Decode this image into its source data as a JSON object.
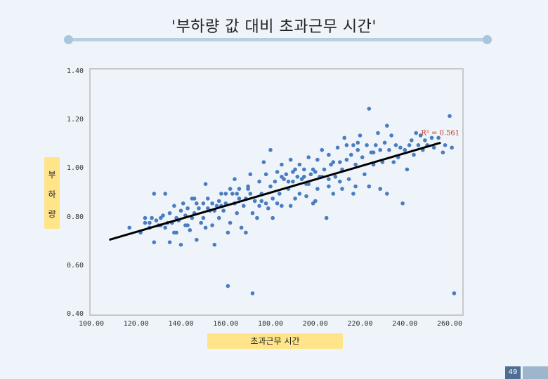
{
  "chart_data": {
    "type": "scatter",
    "title": "'부하량 값 대비 초과근무 시간'",
    "xlabel": "초과근무 시간",
    "ylabel": [
      "부",
      "하",
      "량"
    ],
    "xlim": [
      100,
      270
    ],
    "ylim": [
      0.4,
      1.4
    ],
    "xticks": [
      "100.00",
      "120.00",
      "140.00",
      "160.00",
      "180.00",
      "200.00",
      "220.00",
      "240.00",
      "260.00"
    ],
    "yticks": [
      "0.40",
      "0.60",
      "0.80",
      "1.00",
      "1.20",
      "1.40"
    ],
    "trendline": {
      "x": [
        108,
        256
      ],
      "y": [
        0.71,
        1.11
      ],
      "label": "R² = 0.561"
    },
    "marker_color": "#4a7cc0",
    "trend_color": "#000000",
    "series": [
      {
        "points": [
          [
            117,
            0.76
          ],
          [
            122,
            0.74
          ],
          [
            124,
            0.78
          ],
          [
            126,
            0.78
          ],
          [
            127,
            0.8
          ],
          [
            128,
            0.7
          ],
          [
            128,
            0.9
          ],
          [
            129,
            0.79
          ],
          [
            130,
            0.77
          ],
          [
            131,
            0.8
          ],
          [
            132,
            0.81
          ],
          [
            133,
            0.9
          ],
          [
            133,
            0.76
          ],
          [
            134,
            0.78
          ],
          [
            135,
            0.82
          ],
          [
            135,
            0.7
          ],
          [
            136,
            0.78
          ],
          [
            137,
            0.85
          ],
          [
            138,
            0.8
          ],
          [
            138,
            0.74
          ],
          [
            139,
            0.79
          ],
          [
            140,
            0.83
          ],
          [
            140,
            0.69
          ],
          [
            141,
            0.86
          ],
          [
            142,
            0.77
          ],
          [
            142,
            0.81
          ],
          [
            143,
            0.84
          ],
          [
            144,
            0.75
          ],
          [
            145,
            0.88
          ],
          [
            145,
            0.8
          ],
          [
            146,
            0.82
          ],
          [
            147,
            0.86
          ],
          [
            147,
            0.71
          ],
          [
            148,
            0.84
          ],
          [
            149,
            0.78
          ],
          [
            150,
            0.86
          ],
          [
            150,
            0.8
          ],
          [
            151,
            0.94
          ],
          [
            151,
            0.76
          ],
          [
            152,
            0.84
          ],
          [
            153,
            0.83
          ],
          [
            154,
            0.86
          ],
          [
            154,
            0.77
          ],
          [
            155,
            0.83
          ],
          [
            155,
            0.69
          ],
          [
            156,
            0.85
          ],
          [
            157,
            0.87
          ],
          [
            157,
            0.8
          ],
          [
            158,
            0.85
          ],
          [
            159,
            0.83
          ],
          [
            160,
            0.86
          ],
          [
            160,
            0.9
          ],
          [
            161,
            0.74
          ],
          [
            161,
            0.52
          ],
          [
            162,
            0.92
          ],
          [
            162,
            0.78
          ],
          [
            163,
            0.9
          ],
          [
            164,
            0.96
          ],
          [
            164,
            0.86
          ],
          [
            165,
            0.82
          ],
          [
            166,
            0.88
          ],
          [
            166,
            0.92
          ],
          [
            167,
            0.76
          ],
          [
            168,
            0.85
          ],
          [
            169,
            0.88
          ],
          [
            169,
            0.74
          ],
          [
            170,
            0.93
          ],
          [
            171,
            0.98
          ],
          [
            171,
            0.9
          ],
          [
            172,
            0.82
          ],
          [
            172,
            0.49
          ],
          [
            173,
            0.87
          ],
          [
            174,
            0.8
          ],
          [
            175,
            0.95
          ],
          [
            175,
            0.85
          ],
          [
            176,
            0.9
          ],
          [
            177,
            1.03
          ],
          [
            178,
            0.98
          ],
          [
            178,
            0.86
          ],
          [
            179,
            0.84
          ],
          [
            180,
            0.93
          ],
          [
            180,
            1.08
          ],
          [
            181,
            0.8
          ],
          [
            181,
            0.88
          ],
          [
            182,
            0.95
          ],
          [
            183,
            0.99
          ],
          [
            184,
            0.9
          ],
          [
            185,
            1.02
          ],
          [
            185,
            0.85
          ],
          [
            186,
            0.96
          ],
          [
            187,
            0.98
          ],
          [
            188,
            0.92
          ],
          [
            189,
            1.04
          ],
          [
            189,
            0.85
          ],
          [
            190,
            0.95
          ],
          [
            191,
            1.0
          ],
          [
            191,
            0.88
          ],
          [
            192,
            0.97
          ],
          [
            193,
            1.02
          ],
          [
            193,
            0.9
          ],
          [
            194,
            0.96
          ],
          [
            195,
            1.0
          ],
          [
            196,
            0.89
          ],
          [
            197,
            0.94
          ],
          [
            197,
            1.05
          ],
          [
            198,
            0.98
          ],
          [
            199,
            0.86
          ],
          [
            200,
            0.99
          ],
          [
            201,
            1.04
          ],
          [
            201,
            0.92
          ],
          [
            202,
            0.97
          ],
          [
            203,
            1.08
          ],
          [
            204,
            1.0
          ],
          [
            205,
            0.8
          ],
          [
            206,
            0.96
          ],
          [
            206,
            1.06
          ],
          [
            207,
            1.02
          ],
          [
            208,
            0.9
          ],
          [
            209,
            0.97
          ],
          [
            210,
            1.09
          ],
          [
            211,
            1.03
          ],
          [
            211,
            0.95
          ],
          [
            212,
            1.0
          ],
          [
            213,
            1.13
          ],
          [
            214,
            1.04
          ],
          [
            215,
            0.96
          ],
          [
            216,
            1.06
          ],
          [
            217,
            1.1
          ],
          [
            217,
            0.9
          ],
          [
            218,
            1.02
          ],
          [
            219,
            1.08
          ],
          [
            220,
            1.14
          ],
          [
            221,
            1.05
          ],
          [
            222,
            0.98
          ],
          [
            223,
            1.1
          ],
          [
            224,
            1.25
          ],
          [
            225,
            1.07
          ],
          [
            226,
            1.02
          ],
          [
            227,
            1.1
          ],
          [
            228,
            1.15
          ],
          [
            229,
            1.08
          ],
          [
            230,
            1.03
          ],
          [
            231,
            1.11
          ],
          [
            232,
            1.18
          ],
          [
            233,
            1.08
          ],
          [
            234,
            1.14
          ],
          [
            235,
            1.03
          ],
          [
            236,
            1.1
          ],
          [
            237,
            1.05
          ],
          [
            238,
            1.09
          ],
          [
            239,
            0.86
          ],
          [
            240,
            1.08
          ],
          [
            241,
            1.0
          ],
          [
            242,
            1.1
          ],
          [
            243,
            1.12
          ],
          [
            244,
            1.06
          ],
          [
            245,
            1.15
          ],
          [
            246,
            1.1
          ],
          [
            247,
            1.14
          ],
          [
            248,
            1.08
          ],
          [
            249,
            1.12
          ],
          [
            250,
            1.1
          ],
          [
            252,
            1.13
          ],
          [
            253,
            1.09
          ],
          [
            255,
            1.13
          ],
          [
            257,
            1.07
          ],
          [
            258,
            1.1
          ],
          [
            260,
            1.22
          ],
          [
            261,
            1.09
          ],
          [
            262,
            0.49
          ],
          [
            229,
            0.92
          ],
          [
            224,
            0.93
          ],
          [
            218,
            0.93
          ],
          [
            212,
            0.92
          ],
          [
            206,
            0.93
          ],
          [
            200,
            0.87
          ],
          [
            196,
            0.94
          ],
          [
            188,
            0.95
          ],
          [
            183,
            0.86
          ],
          [
            176,
            0.87
          ],
          [
            170,
            0.92
          ],
          [
            165,
            0.9
          ],
          [
            158,
            0.9
          ],
          [
            152,
            0.88
          ],
          [
            146,
            0.88
          ],
          [
            143,
            0.77
          ],
          [
            137,
            0.74
          ],
          [
            131,
            0.77
          ],
          [
            126,
            0.76
          ],
          [
            124,
            0.8
          ],
          [
            185,
            0.97
          ],
          [
            190,
            0.99
          ],
          [
            195,
            0.97
          ],
          [
            199,
            1.0
          ],
          [
            203,
            0.97
          ],
          [
            208,
            1.03
          ],
          [
            214,
            1.1
          ],
          [
            219,
            1.11
          ],
          [
            226,
            1.07
          ],
          [
            232,
            0.9
          ]
        ]
      }
    ]
  },
  "page": {
    "number": "49"
  }
}
